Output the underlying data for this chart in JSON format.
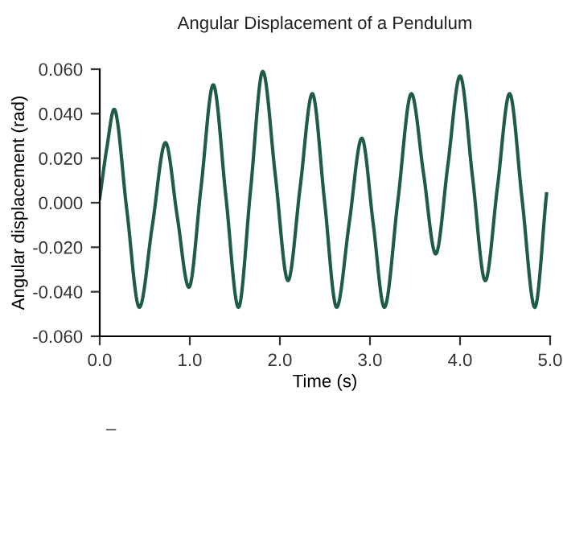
{
  "chart_data": {
    "type": "line",
    "title": "Angular Displacement of a Pendulum",
    "xlabel": "Time (s)",
    "ylabel": "Angular displacement (rad)",
    "xlim": [
      0,
      5
    ],
    "xticks": [
      {
        "value": 0,
        "label": "0.0"
      },
      {
        "value": 1,
        "label": "1.0"
      },
      {
        "value": 2,
        "label": "2.0"
      },
      {
        "value": 3,
        "label": "3.0"
      },
      {
        "value": 4,
        "label": "4.0"
      },
      {
        "value": 5,
        "label": "5.0"
      }
    ],
    "ylim": [
      -0.06,
      0.06
    ],
    "yticks": [
      {
        "value": -0.06,
        "label": "-0.060"
      },
      {
        "value": -0.04,
        "label": "-0.040"
      },
      {
        "value": -0.02,
        "label": "-0.020"
      },
      {
        "value": 0,
        "label": "0.000"
      },
      {
        "value": 0.02,
        "label": "0.020"
      },
      {
        "value": 0.04,
        "label": "0.040"
      },
      {
        "value": 0.06,
        "label": "0.060"
      }
    ],
    "grid": false,
    "marker": "none",
    "line_style": "solid",
    "annotations": [
      "–"
    ],
    "series": [
      {
        "color": "#1f5c45",
        "x": [
          0,
          0.08,
          0.16,
          0.3,
          0.44,
          0.585,
          0.73,
          0.86,
          0.99,
          1.125,
          1.26,
          1.4,
          1.54,
          1.675,
          1.81,
          1.95,
          2.09,
          2.225,
          2.36,
          2.495,
          2.63,
          2.77,
          2.91,
          3.035,
          3.16,
          3.31,
          3.46,
          3.595,
          3.73,
          3.865,
          4.0,
          4.14,
          4.28,
          4.415,
          4.55,
          4.69,
          4.83,
          4.96
        ],
        "values": [
          0.002,
          0.025,
          0.042,
          -0.003,
          -0.047,
          -0.01,
          0.027,
          -0.006,
          -0.038,
          0.007,
          0.053,
          0.003,
          -0.047,
          0.006,
          0.059,
          0.012,
          -0.035,
          0.007,
          0.049,
          0.001,
          -0.047,
          -0.009,
          0.029,
          -0.009,
          -0.047,
          0.001,
          0.049,
          0.013,
          -0.023,
          0.017,
          0.057,
          0.011,
          -0.035,
          0.007,
          0.049,
          0.001,
          -0.047,
          0.004
        ]
      }
    ]
  }
}
